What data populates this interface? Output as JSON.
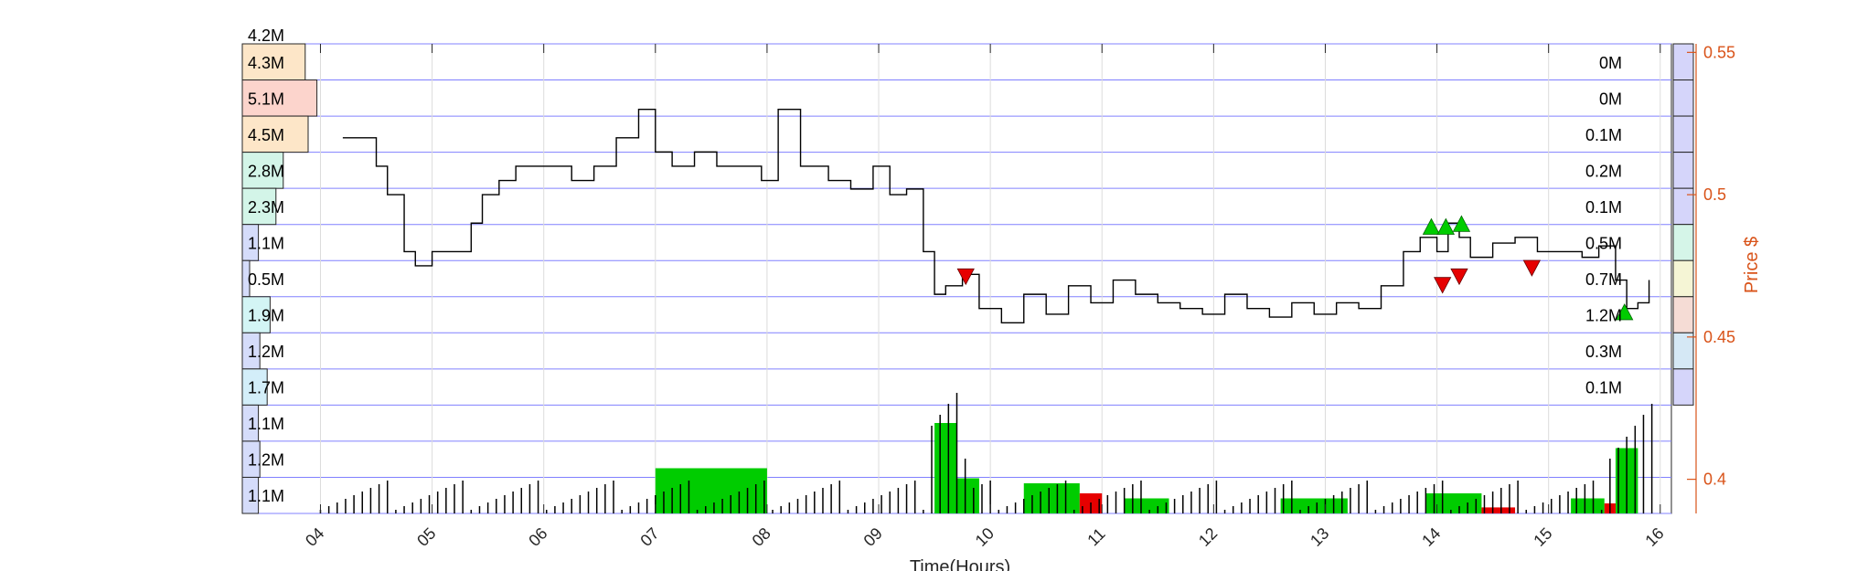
{
  "chart_data": {
    "type": "line",
    "xlabel": "Time(Hours)",
    "ylabel": "Price $",
    "x_ticks": [
      "04",
      "05",
      "06",
      "07",
      "08",
      "09",
      "10",
      "11",
      "12",
      "13",
      "14",
      "15",
      "16"
    ],
    "x_range": [
      3.3,
      16.1
    ],
    "y_ticks": [
      "0.55",
      "0.5",
      "0.45",
      "0.4"
    ],
    "ylim": [
      0.388,
      0.553
    ],
    "grid": true,
    "colors": {
      "price": "#000000",
      "axis": "#d95319",
      "grid": "#8080ff",
      "buy": "#00cc00",
      "sell": "#e60000"
    },
    "price_series": {
      "x": [
        4.2,
        4.4,
        4.5,
        4.6,
        4.75,
        4.85,
        5.0,
        5.2,
        5.35,
        5.45,
        5.6,
        5.75,
        6.0,
        6.25,
        6.45,
        6.65,
        6.85,
        7.0,
        7.15,
        7.35,
        7.55,
        7.75,
        7.95,
        8.1,
        8.3,
        8.55,
        8.75,
        8.95,
        9.1,
        9.25,
        9.4,
        9.5,
        9.6,
        9.75,
        9.9,
        10.1,
        10.3,
        10.5,
        10.7,
        10.9,
        11.1,
        11.3,
        11.5,
        11.7,
        11.9,
        12.1,
        12.3,
        12.5,
        12.7,
        12.9,
        13.1,
        13.3,
        13.5,
        13.7,
        13.85,
        14.0,
        14.1,
        14.2,
        14.3,
        14.5,
        14.7,
        14.9,
        15.1,
        15.3,
        15.45,
        15.6,
        15.7,
        15.8,
        15.9
      ],
      "y": [
        0.52,
        0.52,
        0.51,
        0.5,
        0.48,
        0.475,
        0.48,
        0.48,
        0.49,
        0.5,
        0.505,
        0.51,
        0.51,
        0.505,
        0.51,
        0.52,
        0.53,
        0.515,
        0.51,
        0.515,
        0.51,
        0.51,
        0.505,
        0.53,
        0.51,
        0.505,
        0.502,
        0.51,
        0.5,
        0.502,
        0.48,
        0.465,
        0.468,
        0.472,
        0.46,
        0.455,
        0.465,
        0.458,
        0.468,
        0.462,
        0.47,
        0.465,
        0.462,
        0.46,
        0.458,
        0.465,
        0.46,
        0.457,
        0.462,
        0.458,
        0.462,
        0.46,
        0.468,
        0.48,
        0.485,
        0.48,
        0.49,
        0.485,
        0.478,
        0.483,
        0.485,
        0.48,
        0.48,
        0.478,
        0.482,
        0.47,
        0.46,
        0.462,
        0.47
      ]
    },
    "volume_bars": [
      {
        "x0": 7.0,
        "x1": 8.0,
        "h": 0.45,
        "side": "buy"
      },
      {
        "x0": 9.5,
        "x1": 9.7,
        "h": 0.9,
        "side": "buy"
      },
      {
        "x0": 9.7,
        "x1": 9.9,
        "h": 0.35,
        "side": "buy"
      },
      {
        "x0": 10.3,
        "x1": 10.8,
        "h": 0.3,
        "side": "buy"
      },
      {
        "x0": 10.8,
        "x1": 11.0,
        "h": 0.2,
        "side": "sell"
      },
      {
        "x0": 11.2,
        "x1": 11.6,
        "h": 0.15,
        "side": "buy"
      },
      {
        "x0": 12.6,
        "x1": 13.2,
        "h": 0.15,
        "side": "buy"
      },
      {
        "x0": 13.9,
        "x1": 14.4,
        "h": 0.2,
        "side": "buy"
      },
      {
        "x0": 14.4,
        "x1": 14.7,
        "h": 0.06,
        "side": "sell"
      },
      {
        "x0": 15.2,
        "x1": 15.5,
        "h": 0.15,
        "side": "buy"
      },
      {
        "x0": 15.6,
        "x1": 15.8,
        "h": 0.65,
        "side": "buy"
      },
      {
        "x0": 15.5,
        "x1": 15.6,
        "h": 0.1,
        "side": "sell"
      }
    ],
    "buy_markers": [
      {
        "x": 13.95,
        "y": 0.488
      },
      {
        "x": 14.08,
        "y": 0.488
      },
      {
        "x": 14.22,
        "y": 0.489
      },
      {
        "x": 15.68,
        "y": 0.458
      }
    ],
    "sell_markers": [
      {
        "x": 9.78,
        "y": 0.472
      },
      {
        "x": 14.05,
        "y": 0.469
      },
      {
        "x": 14.2,
        "y": 0.472
      },
      {
        "x": 14.85,
        "y": 0.475
      }
    ],
    "left_profile": [
      {
        "label": "4.2M",
        "value": 4.2,
        "color": ""
      },
      {
        "label": "4.3M",
        "value": 4.3,
        "color": "#fde6c8"
      },
      {
        "label": "5.1M",
        "value": 5.1,
        "color": "#fcd4cc"
      },
      {
        "label": "4.5M",
        "value": 4.5,
        "color": "#fde6c8"
      },
      {
        "label": "2.8M",
        "value": 2.8,
        "color": "#d3f5e8"
      },
      {
        "label": "2.3M",
        "value": 2.3,
        "color": "#d3f5e8"
      },
      {
        "label": "1.1M",
        "value": 1.1,
        "color": "#d5dcfa"
      },
      {
        "label": "0.5M",
        "value": 0.5,
        "color": "#d5dcfa"
      },
      {
        "label": "1.9M",
        "value": 1.9,
        "color": "#d3f5f5"
      },
      {
        "label": "1.2M",
        "value": 1.2,
        "color": "#d5dcfa"
      },
      {
        "label": "1.7M",
        "value": 1.7,
        "color": "#d3eef9"
      },
      {
        "label": "1.1M",
        "value": 1.1,
        "color": "#d5dcfa"
      },
      {
        "label": "1.2M",
        "value": 1.2,
        "color": "#d5dcfa"
      },
      {
        "label": "1.1M",
        "value": 1.1,
        "color": "#d5dcfa"
      }
    ],
    "right_profile": [
      {
        "label": "0M",
        "color": "#d5d5fa"
      },
      {
        "label": "0M",
        "color": "#d5d5fa"
      },
      {
        "label": "0.1M",
        "color": "#d5d5fa"
      },
      {
        "label": "0.2M",
        "color": "#d5d5fa"
      },
      {
        "label": "0.1M",
        "color": "#d5d5fa"
      },
      {
        "label": "0.5M",
        "color": "#d5f5e8"
      },
      {
        "label": "0.7M",
        "color": "#f5f5d5"
      },
      {
        "label": "1.2M",
        "color": "#f5dcd5"
      },
      {
        "label": "0.3M",
        "color": "#d5e8f5"
      },
      {
        "label": "0.1M",
        "color": "#d5d5fa"
      }
    ]
  }
}
